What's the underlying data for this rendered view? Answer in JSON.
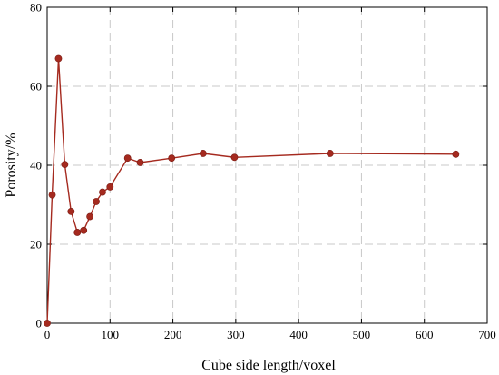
{
  "chart_data": {
    "type": "line",
    "title": "",
    "xlabel": "Cube side length/voxel",
    "ylabel": "Porosity/%",
    "xlim": [
      0,
      700
    ],
    "ylim": [
      0,
      80
    ],
    "xticks": [
      0,
      100,
      200,
      300,
      400,
      500,
      600,
      700
    ],
    "yticks": [
      0,
      20,
      40,
      60,
      80
    ],
    "grid": true,
    "grid_style": "dashed",
    "legend": "none",
    "colors": {
      "line": "#a52a1f",
      "marker": "#a52a1f",
      "grid": "#c8c8c8",
      "axis": "#000000"
    },
    "series": [
      {
        "x": [
          0,
          8,
          18,
          28,
          38,
          48,
          58,
          68,
          78,
          88,
          100,
          128,
          148,
          198,
          248,
          298,
          450,
          650
        ],
        "y": [
          0,
          32.5,
          67,
          40.2,
          28.3,
          23,
          23.5,
          27,
          30.8,
          33.2,
          34.5,
          41.8,
          40.7,
          41.8,
          43,
          42,
          43,
          42.8
        ]
      }
    ]
  }
}
